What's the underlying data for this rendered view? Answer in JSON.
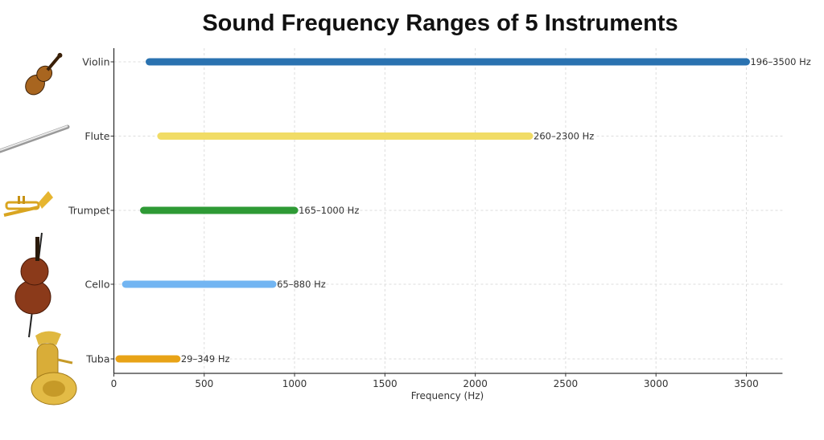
{
  "chart_data": {
    "type": "bar",
    "orientation": "horizontal",
    "title": "Sound Frequency Ranges of 5 Instruments",
    "xlabel": "Frequency (Hz)",
    "ylabel": "",
    "xlim": [
      0,
      3700
    ],
    "xticks": [
      0,
      500,
      1000,
      1500,
      2000,
      2500,
      3000,
      3500
    ],
    "grid": true,
    "categories": [
      "Violin",
      "Flute",
      "Trumpet",
      "Cello",
      "Tuba"
    ],
    "ranges": [
      {
        "name": "Violin",
        "min": 196,
        "max": 3500,
        "label": "196–3500 Hz",
        "color": "#2a72b0",
        "icon": "violin-icon"
      },
      {
        "name": "Flute",
        "min": 260,
        "max": 2300,
        "label": "260–2300 Hz",
        "color": "#f1dc66",
        "icon": "flute-icon"
      },
      {
        "name": "Trumpet",
        "min": 165,
        "max": 1000,
        "label": "165–1000 Hz",
        "color": "#2e9a35",
        "icon": "trumpet-icon"
      },
      {
        "name": "Cello",
        "min": 65,
        "max": 880,
        "label": "65–880 Hz",
        "color": "#72b5f2",
        "icon": "cello-icon"
      },
      {
        "name": "Tuba",
        "min": 29,
        "max": 349,
        "label": "29–349 Hz",
        "color": "#e8a317",
        "icon": "tuba-icon"
      }
    ]
  }
}
